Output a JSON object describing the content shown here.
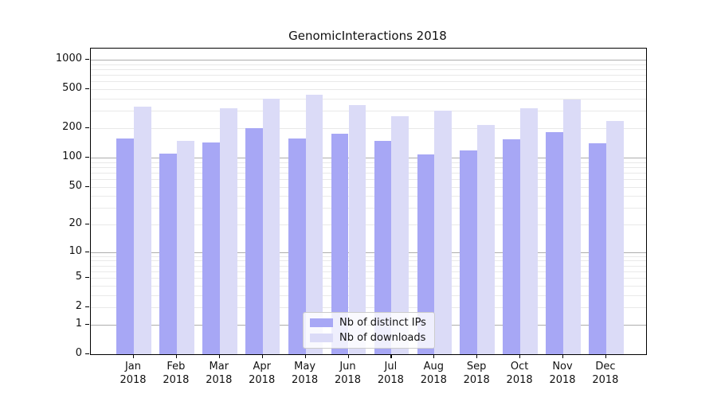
{
  "chart_data": {
    "type": "bar",
    "title": "GenomicInteractions 2018",
    "categories": [
      "Jan",
      "Feb",
      "Mar",
      "Apr",
      "May",
      "Jun",
      "Jul",
      "Aug",
      "Sep",
      "Oct",
      "Nov",
      "Dec"
    ],
    "year_label": "2018",
    "series": [
      {
        "name": "Nb of distinct IPs",
        "color": "#a7a7f5",
        "values": [
          157,
          110,
          143,
          200,
          157,
          175,
          148,
          108,
          119,
          154,
          183,
          141
        ]
      },
      {
        "name": "Nb of downloads",
        "color": "#dbdbf7",
        "values": [
          330,
          149,
          318,
          398,
          438,
          342,
          267,
          302,
          215,
          321,
          392,
          239
        ]
      }
    ],
    "yscale": "log1p",
    "yticks": [
      0,
      1,
      2,
      5,
      10,
      20,
      50,
      100,
      200,
      500,
      1000
    ],
    "ylim": [
      0,
      1300
    ],
    "grid": "horizontal",
    "grid_major_at": [
      1,
      10,
      100,
      1000
    ],
    "legend_position": "inside-bottom-center",
    "colors": {
      "grid_minor": "#e9e9e9",
      "grid_major": "#adadad",
      "axis": "#000000",
      "text": "#111111",
      "background": "#ffffff"
    }
  }
}
